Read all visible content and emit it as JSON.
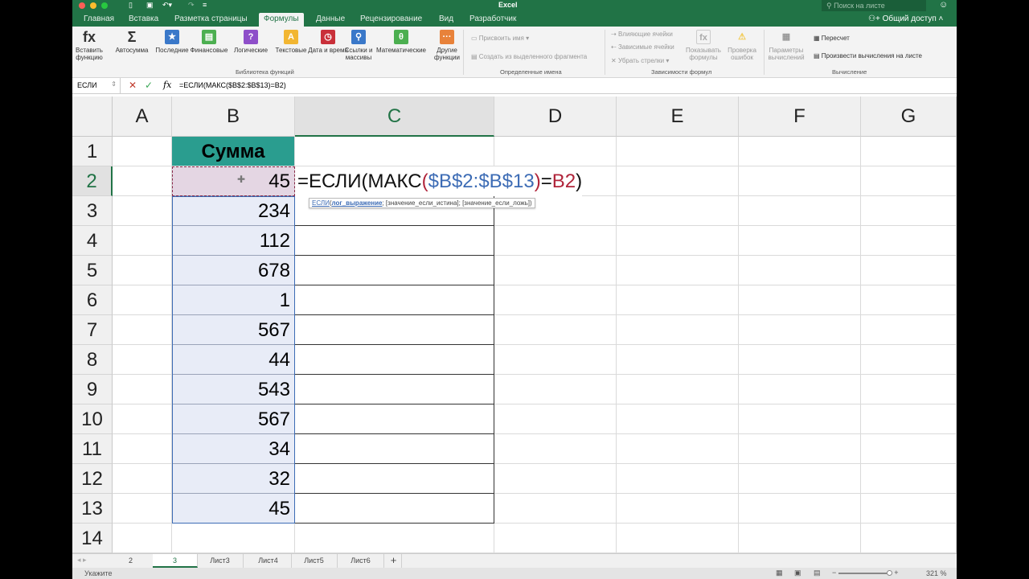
{
  "app": {
    "title": "Excel",
    "search_placeholder": "Поиск на листе",
    "share": "Общий доступ"
  },
  "tabs": [
    "Главная",
    "Вставка",
    "Разметка страницы",
    "Формулы",
    "Данные",
    "Рецензирование",
    "Вид",
    "Разработчик"
  ],
  "active_tab": "Формулы",
  "ribbon": {
    "library": [
      {
        "label": "Вставить функцию",
        "icon": "fx-icon",
        "color": "#333333",
        "glyph": "fx"
      },
      {
        "label": "Автосумма",
        "icon": "sigma-icon",
        "color": "#333333",
        "glyph": "Σ"
      },
      {
        "label": "Последние",
        "icon": "star-icon",
        "color": "#3a78c9",
        "glyph": "★"
      },
      {
        "label": "Финансовые",
        "icon": "finance-icon",
        "color": "#4caf50",
        "glyph": "▤"
      },
      {
        "label": "Логические",
        "icon": "question-icon",
        "color": "#8e4fc9",
        "glyph": "?"
      },
      {
        "label": "Текстовые",
        "icon": "text-icon",
        "color": "#f2b632",
        "glyph": "A"
      },
      {
        "label": "Дата и время",
        "icon": "clock-icon",
        "color": "#c9303a",
        "glyph": "◷"
      },
      {
        "label": "Ссылки и массивы",
        "icon": "lookup-icon",
        "color": "#3a78c9",
        "glyph": "⚲"
      },
      {
        "label": "Математические",
        "icon": "theta-icon",
        "color": "#4caf50",
        "glyph": "θ"
      },
      {
        "label": "Другие функции",
        "icon": "more-functions-icon",
        "color": "#e8823a",
        "glyph": "···"
      }
    ],
    "library_group": "Библиотека функций",
    "names": {
      "define": "Присвоить имя",
      "create": "Создать из выделенного фрагмента",
      "group": "Определенные имена"
    },
    "audit": {
      "precedents": "Влияющие ячейки",
      "dependents": "Зависимые ячейки",
      "remove": "Убрать стрелки",
      "show": "Показывать формулы",
      "check": "Проверка ошибок",
      "group": "Зависимости формул"
    },
    "calc": {
      "options": "Параметры вычислений",
      "recalc": "Пересчет",
      "calc_sheet": "Произвести вычисления на листе",
      "group": "Вычисление"
    }
  },
  "formula_bar": {
    "name_box": "ЕСЛИ",
    "formula": "=ЕСЛИ(МАКС($B$2:$B$13)=B2)"
  },
  "columns": [
    "A",
    "B",
    "C",
    "D",
    "E",
    "F",
    "G"
  ],
  "rows": [
    "1",
    "2",
    "3",
    "4",
    "5",
    "6",
    "7",
    "8",
    "9",
    "10",
    "11",
    "12",
    "13",
    "14"
  ],
  "header_b1": "Сумма",
  "values_b": [
    "45",
    "234",
    "112",
    "678",
    "1",
    "567",
    "44",
    "543",
    "567",
    "34",
    "32",
    "45"
  ],
  "edit": {
    "p1": "=ЕСЛИ(МАКС",
    "p2": "(",
    "p3": "$B$2:$B$13",
    "p4": ")",
    "p5": "=",
    "p6": "B2",
    "p7": ")"
  },
  "tooltip": {
    "fn": "ЕСЛИ",
    "open": "(",
    "arg1": "лог_выражение",
    "rest": "; [значение_если_истина]; [значение_если_ложь])"
  },
  "sheets": [
    "2",
    "3",
    "Лист3",
    "Лист4",
    "Лист5",
    "Лист6"
  ],
  "active_sheet": "3",
  "status": {
    "mode": "Укажите",
    "zoom": "321 %"
  },
  "colors": {
    "header_fill": "#2a9d8f",
    "b_fill": "#e8ecf7",
    "active_fill": "#e4d6e3",
    "accent": "#217346",
    "ref_blue": "#3d6cb5",
    "ref_red": "#b0243a"
  }
}
